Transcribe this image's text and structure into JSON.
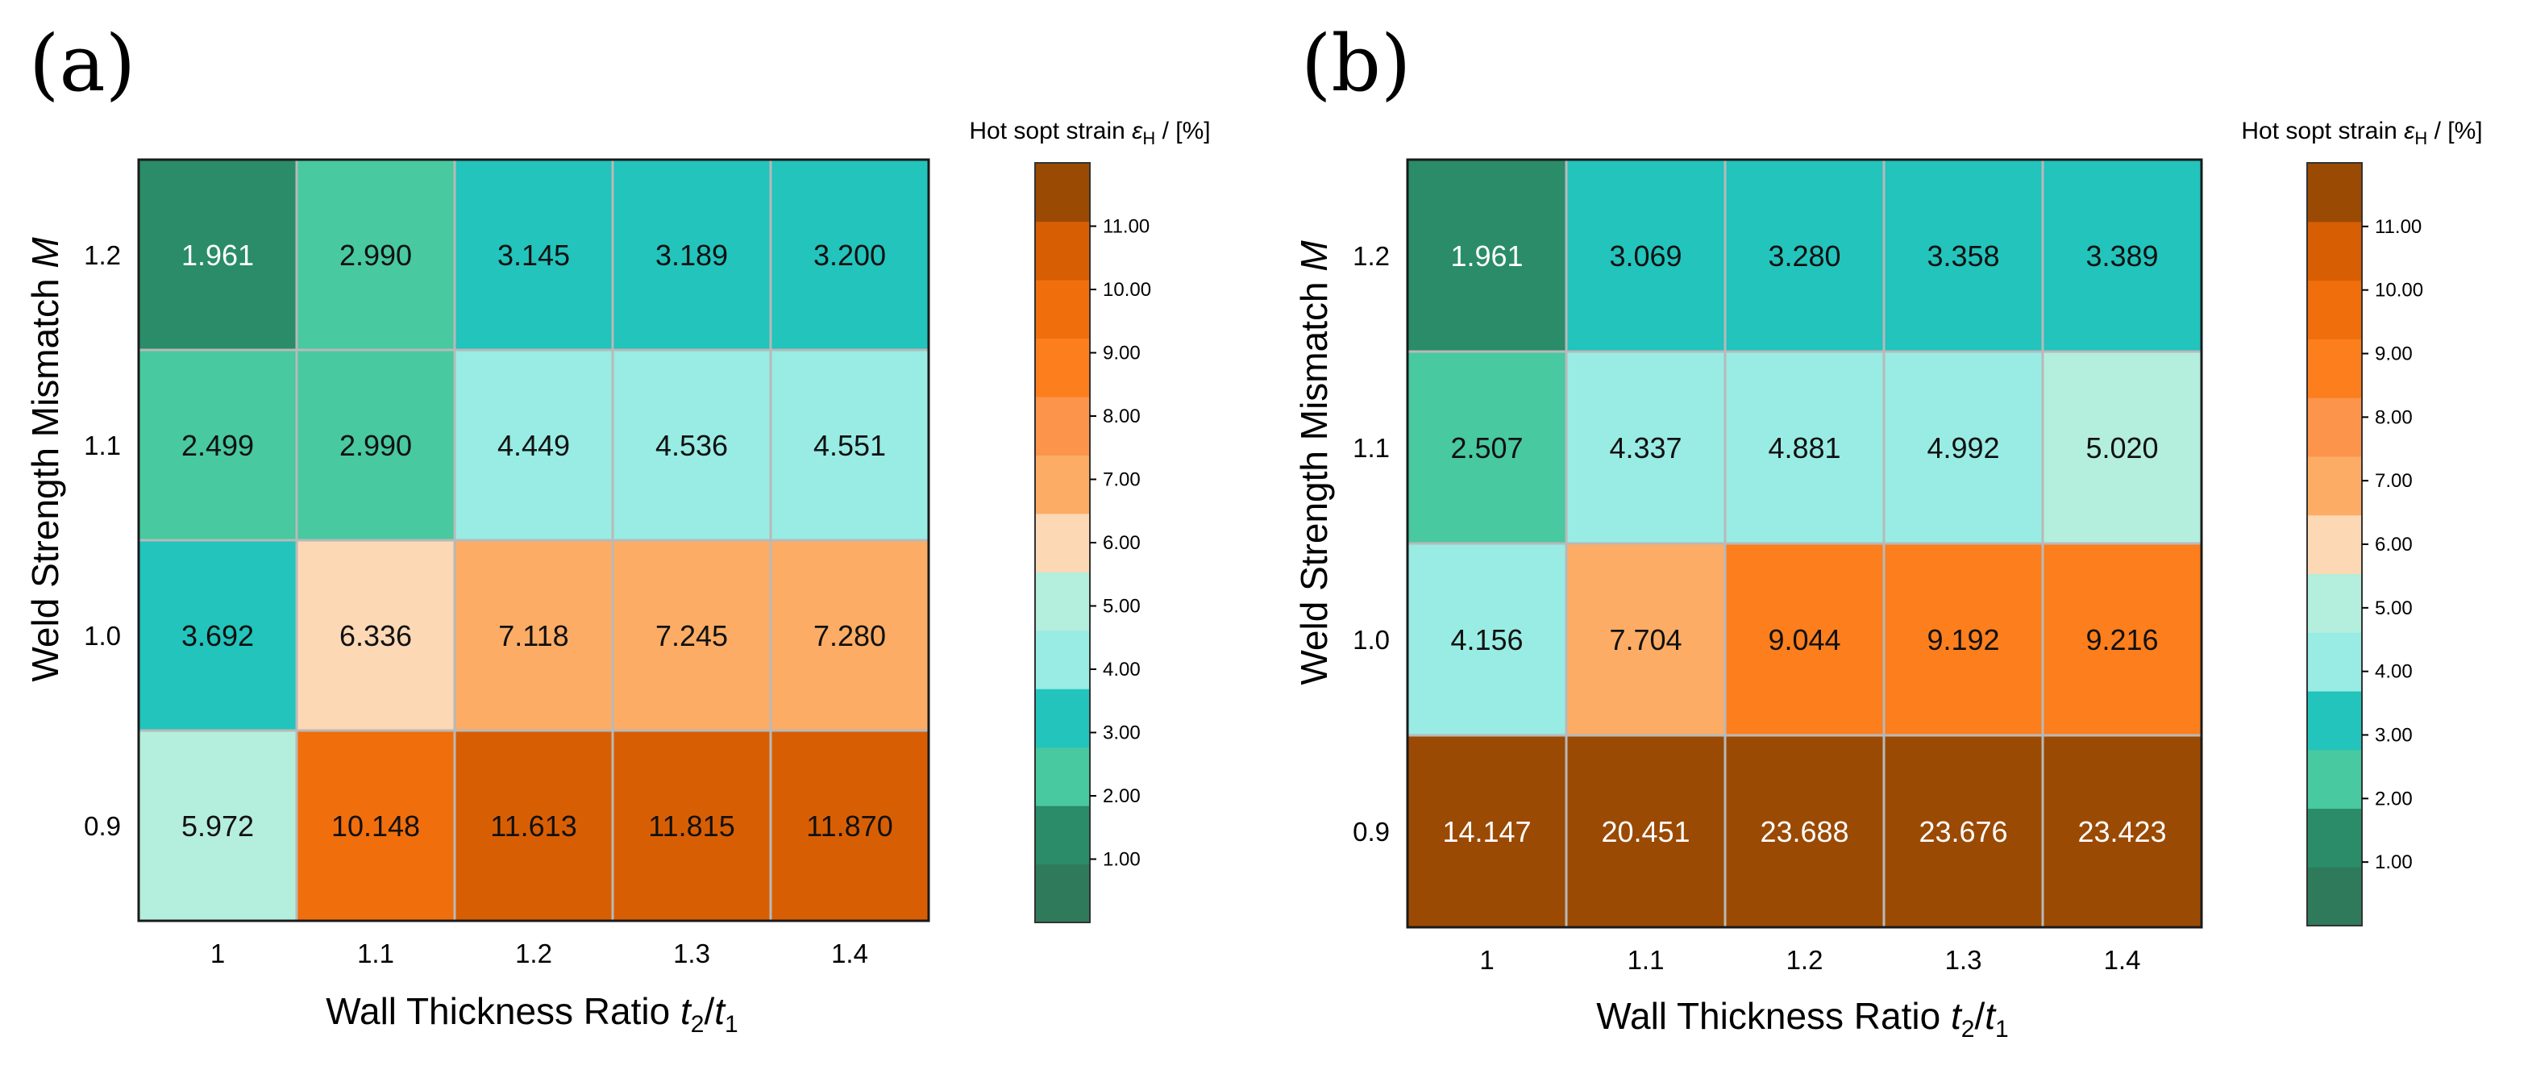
{
  "chart_data": [
    {
      "type": "heatmap",
      "panel_label": "(a)",
      "xlabel": "Wall Thickness Ratio",
      "xlabel_math": {
        "t2": "t",
        "sub2": "2",
        "slash": "/",
        "t1": "t",
        "sub1": "1"
      },
      "ylabel": "Weld Strength Mismatch",
      "ylabel_var": "M",
      "x_categories": [
        "1",
        "1.1",
        "1.2",
        "1.3",
        "1.4"
      ],
      "y_categories": [
        "1.2",
        "1.1",
        "1.0",
        "0.9"
      ],
      "values": [
        [
          1.961,
          2.99,
          3.145,
          3.189,
          3.2
        ],
        [
          2.499,
          2.99,
          4.449,
          4.536,
          4.551
        ],
        [
          3.692,
          6.336,
          7.118,
          7.245,
          7.28
        ],
        [
          5.972,
          10.148,
          11.613,
          11.815,
          11.87
        ]
      ],
      "value_labels": [
        [
          "1.961",
          "2.990",
          "3.145",
          "3.189",
          "3.200"
        ],
        [
          "2.499",
          "2.990",
          "4.449",
          "4.536",
          "4.551"
        ],
        [
          "3.692",
          "6.336",
          "7.118",
          "7.245",
          "7.280"
        ],
        [
          "5.972",
          "10.148",
          "11.613",
          "11.815",
          "11.870"
        ]
      ],
      "colorbar": {
        "title": "Hot sopt strain",
        "title_var": "ε",
        "title_sub": "H",
        "title_unit": " / [%]",
        "ticks": [
          "1.00",
          "2.00",
          "3.00",
          "4.00",
          "5.00",
          "6.00",
          "7.00",
          "8.00",
          "9.00",
          "10.00",
          "11.00"
        ],
        "range": [
          0,
          12
        ]
      }
    },
    {
      "type": "heatmap",
      "panel_label": "(b)",
      "xlabel": "Wall Thickness Ratio",
      "xlabel_math": {
        "t2": "t",
        "sub2": "2",
        "slash": "/",
        "t1": "t",
        "sub1": "1"
      },
      "ylabel": "Weld Strength Mismatch",
      "ylabel_var": "M",
      "x_categories": [
        "1",
        "1.1",
        "1.2",
        "1.3",
        "1.4"
      ],
      "y_categories": [
        "1.2",
        "1.1",
        "1.0",
        "0.9"
      ],
      "values": [
        [
          1.961,
          3.069,
          3.28,
          3.358,
          3.389
        ],
        [
          2.507,
          4.337,
          4.881,
          4.992,
          5.02
        ],
        [
          4.156,
          7.704,
          9.044,
          9.192,
          9.216
        ],
        [
          14.147,
          20.451,
          23.688,
          23.676,
          23.423
        ]
      ],
      "value_labels": [
        [
          "1.961",
          "3.069",
          "3.280",
          "3.358",
          "3.389"
        ],
        [
          "2.507",
          "4.337",
          "4.881",
          "4.992",
          "5.020"
        ],
        [
          "4.156",
          "7.704",
          "9.044",
          "9.192",
          "9.216"
        ],
        [
          "14.147",
          "20.451",
          "23.688",
          "23.676",
          "23.423"
        ]
      ],
      "colorbar": {
        "title": "Hot sopt strain",
        "title_var": "ε",
        "title_sub": "H",
        "title_unit": " / [%]",
        "ticks": [
          "1.00",
          "2.00",
          "3.00",
          "4.00",
          "5.00",
          "6.00",
          "7.00",
          "8.00",
          "9.00",
          "10.00",
          "11.00"
        ],
        "range": [
          0,
          12
        ]
      }
    }
  ],
  "palette": [
    "#2e7a5a",
    "#2a8c68",
    "#48c9a0",
    "#22c4bc",
    "#98ece4",
    "#b4eedc",
    "#fcd8b4",
    "#fcac64",
    "#fc944c",
    "#fc7e1c",
    "#f06e0c",
    "#d85e04",
    "#9b4a04"
  ],
  "grid_color": "#b9b9b9"
}
